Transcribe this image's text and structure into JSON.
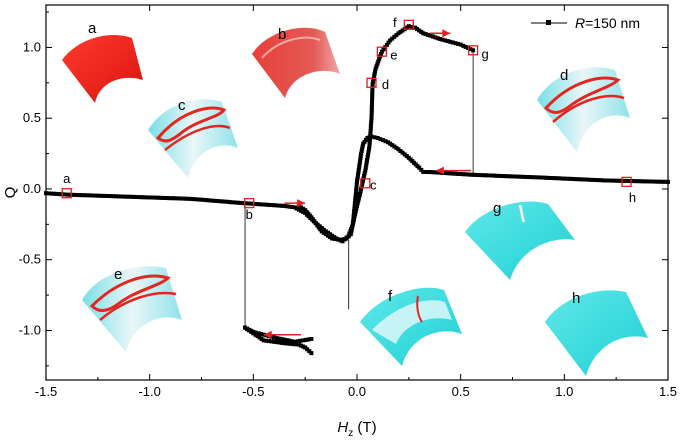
{
  "chart_data": {
    "type": "line",
    "xlabel_main": "H",
    "xlabel_sub": "z",
    "xlabel_unit": " (T)",
    "ylabel": "Q",
    "xlim": [
      -1.5,
      1.5
    ],
    "ylim": [
      -1.35,
      1.3
    ],
    "xticks": [
      -1.5,
      -1.0,
      -0.5,
      0.0,
      0.5,
      1.0,
      1.5
    ],
    "xtick_labels": [
      "-1.5",
      "-1.0",
      "-0.5",
      "0.0",
      "0.5",
      "1.0",
      "1.5"
    ],
    "yticks": [
      -1.0,
      -0.5,
      0.0,
      0.5,
      1.0
    ],
    "ytick_labels": [
      "-1.0",
      "-0.5",
      "0.0",
      "0.5",
      "1.0"
    ],
    "grid": false,
    "legend": {
      "position": "top-right",
      "entries": [
        {
          "prefix": "R",
          "suffix": "=150 nm"
        }
      ]
    },
    "series": [
      {
        "marker": "square",
        "color": "#000000",
        "branch_decreasing_upper": [
          [
            1.5,
            0.05
          ],
          [
            1.2,
            0.06
          ],
          [
            0.9,
            0.08
          ],
          [
            0.56,
            0.1
          ],
          [
            0.45,
            0.11
          ],
          [
            0.35,
            0.12
          ],
          [
            0.32,
            0.12
          ],
          [
            0.3,
            0.15
          ],
          [
            0.25,
            0.22
          ],
          [
            0.2,
            0.28
          ],
          [
            0.15,
            0.33
          ],
          [
            0.1,
            0.36
          ],
          [
            0.07,
            0.37
          ],
          [
            0.05,
            0.36
          ],
          [
            0.03,
            0.32
          ],
          [
            0.02,
            0.25
          ],
          [
            0.01,
            0.15
          ],
          [
            0.0,
            0.05
          ],
          [
            -0.01,
            -0.1
          ],
          [
            -0.02,
            -0.25
          ],
          [
            -0.03,
            -0.32
          ],
          [
            -0.05,
            -0.35
          ],
          [
            -0.08,
            -0.36
          ],
          [
            -0.12,
            -0.35
          ],
          [
            -0.17,
            -0.3
          ],
          [
            -0.22,
            -0.2
          ],
          [
            -0.25,
            -0.15
          ],
          [
            -0.28,
            -0.12
          ]
        ],
        "branch_decreasing_lower": [
          [
            -0.22,
            -1.06
          ],
          [
            -0.3,
            -1.08
          ],
          [
            -0.4,
            -1.05
          ],
          [
            -0.5,
            -1.01
          ],
          [
            -0.54,
            -0.98
          ]
        ],
        "branch_increasing_lower": [
          [
            -1.5,
            -0.03
          ],
          [
            -1.4,
            -0.04
          ],
          [
            -1.2,
            -0.05
          ],
          [
            -1.0,
            -0.06
          ],
          [
            -0.8,
            -0.07
          ],
          [
            -0.55,
            -0.1
          ],
          [
            -0.45,
            -0.11
          ],
          [
            -0.35,
            -0.12
          ],
          [
            -0.3,
            -0.13
          ],
          [
            -0.25,
            -0.17
          ],
          [
            -0.2,
            -0.24
          ],
          [
            -0.15,
            -0.3
          ],
          [
            -0.1,
            -0.35
          ],
          [
            -0.07,
            -0.37
          ],
          [
            -0.04,
            -0.33
          ],
          [
            -0.02,
            -0.25
          ],
          [
            0.0,
            -0.12
          ],
          [
            0.02,
            0.0
          ],
          [
            0.04,
            0.13
          ],
          [
            0.06,
            0.3
          ],
          [
            0.07,
            0.5
          ],
          [
            0.075,
            0.74
          ],
          [
            0.09,
            0.85
          ],
          [
            0.12,
            0.97
          ],
          [
            0.16,
            1.05
          ],
          [
            0.2,
            1.1
          ],
          [
            0.25,
            1.15
          ],
          [
            0.28,
            1.14
          ],
          [
            0.32,
            1.1
          ],
          [
            0.4,
            1.06
          ],
          [
            0.5,
            1.02
          ],
          [
            0.56,
            0.98
          ]
        ],
        "branch_increasing_upper": [
          [
            -0.22,
            -1.16
          ],
          [
            -0.25,
            -1.12
          ],
          [
            -0.28,
            -1.1
          ],
          [
            -0.35,
            -1.09
          ],
          [
            -0.45,
            -1.07
          ],
          [
            -0.54,
            -0.98
          ]
        ],
        "switch_jumps": [
          [
            [
              0.56,
              0.98
            ],
            [
              0.56,
              0.1
            ]
          ],
          [
            [
              -0.54,
              -0.1
            ],
            [
              -0.54,
              -0.98
            ]
          ],
          [
            [
              -0.04,
              -0.36
            ],
            [
              -0.04,
              -0.85
            ]
          ]
        ]
      }
    ],
    "state_markers": [
      {
        "label": "a",
        "x": -1.4,
        "y": -0.03
      },
      {
        "label": "b",
        "x": -0.52,
        "y": -0.1
      },
      {
        "label": "c",
        "x": 0.04,
        "y": 0.04
      },
      {
        "label": "d",
        "x": 0.07,
        "y": 0.75
      },
      {
        "label": "e",
        "x": 0.12,
        "y": 0.97
      },
      {
        "label": "f",
        "x": 0.25,
        "y": 1.16
      },
      {
        "label": "g",
        "x": 0.56,
        "y": 0.98
      },
      {
        "label": "h",
        "x": 1.3,
        "y": 0.05
      }
    ],
    "arrows": [
      {
        "direction": "right",
        "x_from": -0.35,
        "x_to": -0.25,
        "y": -0.1
      },
      {
        "direction": "right",
        "x_from": 0.35,
        "x_to": 0.45,
        "y": 1.1
      },
      {
        "direction": "left",
        "x_from": 0.55,
        "x_to": 0.38,
        "y": 0.13
      },
      {
        "direction": "left",
        "x_from": -0.27,
        "x_to": -0.45,
        "y": -1.03
      }
    ]
  },
  "insets": [
    {
      "label": "a",
      "color_scheme": "red"
    },
    {
      "label": "b",
      "color_scheme": "red-fade"
    },
    {
      "label": "c",
      "color_scheme": "mixed"
    },
    {
      "label": "d",
      "color_scheme": "mixed"
    },
    {
      "label": "e",
      "color_scheme": "mixed"
    },
    {
      "label": "f",
      "color_scheme": "mixed-cyan"
    },
    {
      "label": "g",
      "color_scheme": "cyan"
    },
    {
      "label": "h",
      "color_scheme": "cyan"
    }
  ],
  "colors": {
    "red": "#e8201a",
    "cyan": "#33dcde",
    "marker_red": "#e02020"
  }
}
